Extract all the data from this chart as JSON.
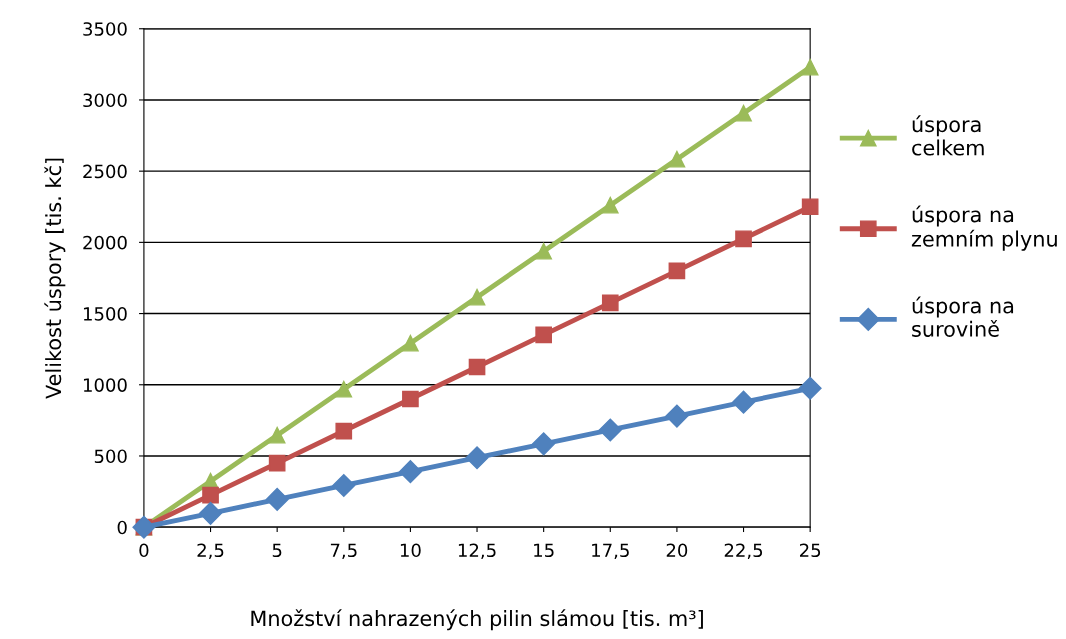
{
  "chart_data": {
    "type": "line",
    "xlabel": "Množství nahrazených pilin slámou [tis. m³]",
    "ylabel": "Velikost úspory [tis. kč]",
    "categories": [
      "0",
      "2,5",
      "5",
      "7,5",
      "10",
      "12,5",
      "15",
      "17,5",
      "20",
      "22,5",
      "25"
    ],
    "series": [
      {
        "name": "úspora celkem",
        "color": "#9bbb59",
        "marker": "triangle",
        "values": [
          0,
          323,
          646,
          969,
          1292,
          1615,
          1938,
          2261,
          2584,
          2907,
          3230
        ]
      },
      {
        "name": "úspora na zemním plynu",
        "color": "#c0504d",
        "marker": "square",
        "values": [
          0,
          225,
          450,
          675,
          900,
          1125,
          1350,
          1575,
          1800,
          2025,
          2250
        ]
      },
      {
        "name": "úspora na surovině",
        "color": "#4f81bd",
        "marker": "diamond",
        "values": [
          0,
          97,
          195,
          293,
          390,
          488,
          585,
          683,
          780,
          878,
          975
        ]
      }
    ],
    "ylim": [
      0,
      3500
    ],
    "yticks": [
      0,
      500,
      1000,
      1500,
      2000,
      2500,
      3000,
      3500
    ],
    "grid": "y",
    "legend": "right",
    "line_style": "solid"
  }
}
